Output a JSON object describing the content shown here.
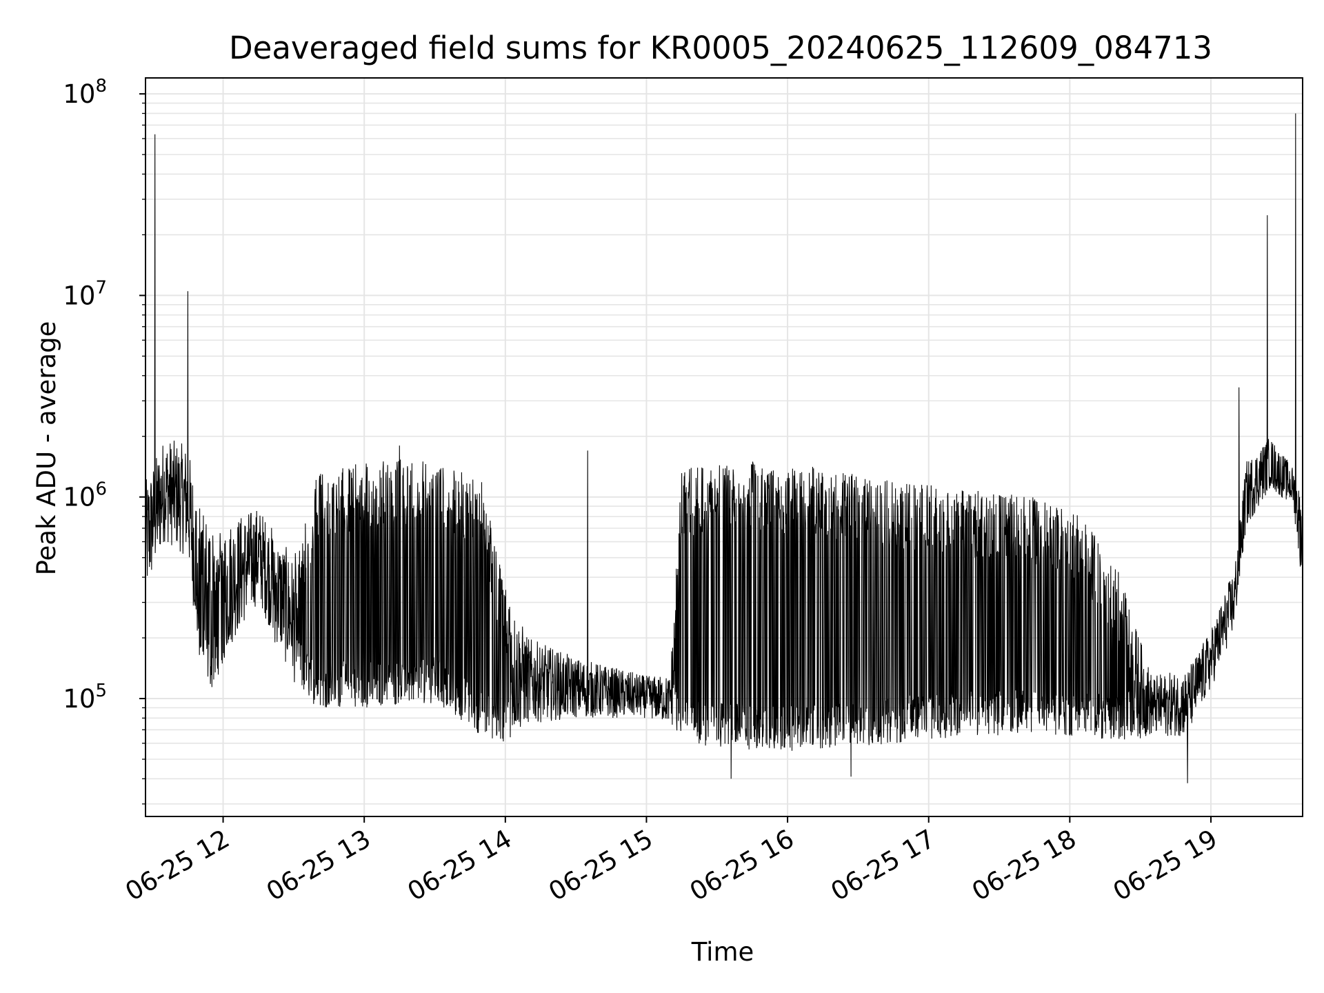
{
  "chart_data": {
    "type": "line",
    "title": "Deaveraged field sums for KR0005_20240625_112609_084713",
    "xlabel": "Time",
    "ylabel": "Peak ADU - average",
    "yscale": "log",
    "ylim": [
      26000,
      120000000
    ],
    "xlim": [
      "06-25 11:27",
      "06-25 19:39"
    ],
    "grid": true,
    "line_color": "#000000",
    "grid_color": "#e5e5e5",
    "x_ticks": [
      {
        "label": "06-25 12",
        "value": "06-25 12:00"
      },
      {
        "label": "06-25 13",
        "value": "06-25 13:00"
      },
      {
        "label": "06-25 14",
        "value": "06-25 14:00"
      },
      {
        "label": "06-25 15",
        "value": "06-25 15:00"
      },
      {
        "label": "06-25 16",
        "value": "06-25 16:00"
      },
      {
        "label": "06-25 17",
        "value": "06-25 17:00"
      },
      {
        "label": "06-25 18",
        "value": "06-25 18:00"
      },
      {
        "label": "06-25 19",
        "value": "06-25 19:00"
      }
    ],
    "y_ticks": [
      {
        "base": "10",
        "exp": "5",
        "value": 100000
      },
      {
        "base": "10",
        "exp": "6",
        "value": 1000000
      },
      {
        "base": "10",
        "exp": "7",
        "value": 10000000
      },
      {
        "base": "10",
        "exp": "8",
        "value": 100000000
      }
    ],
    "series": [
      {
        "envelope": [
          {
            "t": "06-25 11:27",
            "low": 300000,
            "high": 1200000
          },
          {
            "t": "06-25 11:35",
            "low": 600000,
            "high": 2000000
          },
          {
            "t": "06-25 11:45",
            "low": 500000,
            "high": 1800000
          },
          {
            "t": "06-25 11:50",
            "low": 150000,
            "high": 900000
          },
          {
            "t": "06-25 11:55",
            "low": 110000,
            "high": 700000
          },
          {
            "t": "06-25 12:05",
            "low": 200000,
            "high": 800000
          },
          {
            "t": "06-25 12:15",
            "low": 300000,
            "high": 900000
          },
          {
            "t": "06-25 12:30",
            "low": 120000,
            "high": 500000
          },
          {
            "t": "06-25 12:40",
            "low": 90000,
            "high": 1300000
          },
          {
            "t": "06-25 13:00",
            "low": 90000,
            "high": 1500000
          },
          {
            "t": "06-25 13:30",
            "low": 95000,
            "high": 1600000
          },
          {
            "t": "06-25 13:50",
            "low": 65000,
            "high": 1200000
          },
          {
            "t": "06-25 14:00",
            "low": 60000,
            "high": 350000
          },
          {
            "t": "06-25 14:10",
            "low": 75000,
            "high": 200000
          },
          {
            "t": "06-25 14:30",
            "low": 80000,
            "high": 160000
          },
          {
            "t": "06-25 15:00",
            "low": 80000,
            "high": 130000
          },
          {
            "t": "06-25 15:10",
            "low": 75000,
            "high": 130000
          },
          {
            "t": "06-25 15:15",
            "low": 60000,
            "high": 1400000
          },
          {
            "t": "06-25 15:45",
            "low": 55000,
            "high": 1500000
          },
          {
            "t": "06-25 16:15",
            "low": 55000,
            "high": 1400000
          },
          {
            "t": "06-25 16:45",
            "low": 60000,
            "high": 1200000
          },
          {
            "t": "06-25 17:15",
            "low": 65000,
            "high": 1100000
          },
          {
            "t": "06-25 17:45",
            "low": 65000,
            "high": 1000000
          },
          {
            "t": "06-25 18:05",
            "low": 65000,
            "high": 800000
          },
          {
            "t": "06-25 18:20",
            "low": 60000,
            "high": 450000
          },
          {
            "t": "06-25 18:35",
            "low": 65000,
            "high": 130000
          },
          {
            "t": "06-25 18:50",
            "low": 65000,
            "high": 140000
          },
          {
            "t": "06-25 19:00",
            "low": 110000,
            "high": 220000
          },
          {
            "t": "06-25 19:10",
            "low": 220000,
            "high": 450000
          },
          {
            "t": "06-25 19:15",
            "low": 700000,
            "high": 1500000
          },
          {
            "t": "06-25 19:25",
            "low": 1100000,
            "high": 2000000
          },
          {
            "t": "06-25 19:35",
            "low": 900000,
            "high": 1400000
          },
          {
            "t": "06-25 19:39",
            "low": 350000,
            "high": 1000000
          }
        ],
        "spikes": [
          {
            "t": "06-25 11:31",
            "value": 63000000
          },
          {
            "t": "06-25 11:45",
            "value": 10500000
          },
          {
            "t": "06-25 19:24",
            "value": 25000000
          },
          {
            "t": "06-25 19:36",
            "value": 80000000
          },
          {
            "t": "06-25 19:12",
            "value": 3500000
          },
          {
            "t": "06-25 12:22",
            "value": 190000
          },
          {
            "t": "06-25 15:36",
            "value": 40000
          },
          {
            "t": "06-25 16:27",
            "value": 41000
          },
          {
            "t": "06-25 18:50",
            "value": 38000
          },
          {
            "t": "06-25 14:35",
            "value": 1700000
          },
          {
            "t": "06-25 13:15",
            "value": 1800000
          }
        ]
      }
    ]
  }
}
